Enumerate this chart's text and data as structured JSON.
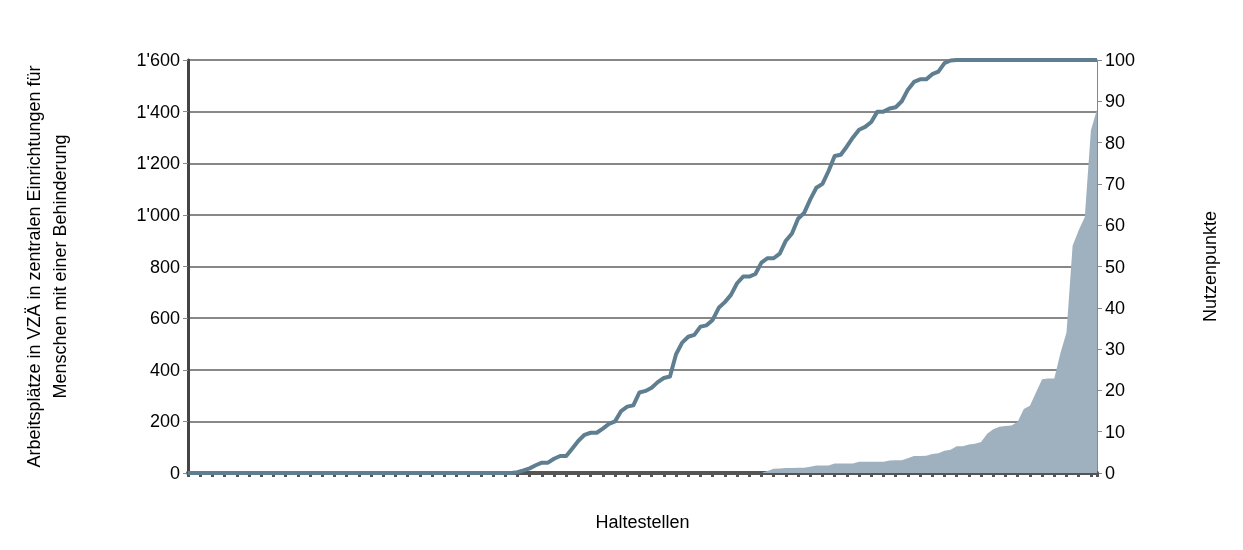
{
  "chart_data": {
    "type": "line",
    "xlabel": "Haltestellen",
    "ylabel": "Arbeitsplätze in VZÄ in zentralen Einrichtungen für\nMenschen mit einer Behinderung",
    "y2label": "Nutzenpunkte",
    "categories": [
      null,
      null,
      null,
      null,
      null,
      null,
      null,
      null,
      null,
      null,
      null,
      null,
      null,
      null,
      null,
      null,
      null,
      null,
      null,
      null,
      null,
      null,
      null,
      null,
      null,
      null,
      null,
      null,
      null,
      null,
      null,
      null,
      null,
      null,
      null,
      null,
      null,
      null,
      null,
      null,
      null,
      null,
      null,
      null,
      null,
      null,
      null,
      null,
      null,
      null,
      null,
      null,
      null,
      null,
      null,
      null,
      null,
      null,
      null,
      null,
      null,
      null,
      null,
      null,
      null,
      null,
      null,
      null,
      null,
      null,
      null,
      null,
      null,
      null,
      null,
      null,
      null,
      null,
      null,
      null,
      null,
      null,
      null,
      null,
      null,
      null,
      null,
      null,
      null,
      null,
      null,
      null,
      null,
      null,
      null,
      null,
      null,
      null,
      null,
      null,
      null,
      null,
      null,
      null,
      null,
      null,
      null,
      null,
      null,
      null,
      null,
      null,
      null,
      null,
      null,
      null,
      null,
      null,
      null,
      null,
      null,
      null,
      null,
      null,
      null,
      null,
      null,
      null,
      null,
      null,
      null,
      null,
      null,
      null,
      null,
      null,
      null,
      null,
      null,
      null,
      null,
      null,
      null,
      null,
      null,
      null,
      null,
      null,
      null,
      null
    ],
    "series": [
      {
        "type": "area",
        "axis": "y2",
        "color": "#9fb1bf",
        "values": [
          0,
          0,
          0,
          0,
          0,
          0,
          0,
          0,
          0,
          0,
          0,
          0,
          0,
          0,
          0,
          0,
          0,
          0,
          0,
          0,
          0,
          0,
          0,
          0,
          0,
          0,
          0,
          0,
          0,
          0,
          0,
          0,
          0,
          0,
          0,
          0,
          0,
          0,
          0,
          0,
          0,
          0,
          0,
          0,
          0,
          0,
          0,
          0,
          0,
          0,
          0,
          0,
          0,
          0,
          0,
          0,
          0,
          0,
          0,
          0,
          0,
          0,
          0,
          0,
          0,
          0,
          0,
          0,
          0,
          0,
          0,
          0,
          0,
          0,
          0,
          0,
          0,
          0,
          0,
          0,
          0,
          0,
          0,
          0,
          0,
          0,
          0,
          0,
          0,
          0,
          0,
          0,
          0,
          0,
          0,
          0.5,
          1,
          1.1,
          1.2,
          1.2,
          1.3,
          1.3,
          1.5,
          1.8,
          1.8,
          1.8,
          2.3,
          2.3,
          2.3,
          2.3,
          2.7,
          2.7,
          2.7,
          2.7,
          2.7,
          3.0,
          3.1,
          3.1,
          3.6,
          4.1,
          4.1,
          4.2,
          4.6,
          4.8,
          5.4,
          5.6,
          6.5,
          6.5,
          6.9,
          7.1,
          7.5,
          9.5,
          10.6,
          11.2,
          11.4,
          11.5,
          12.4,
          15.5,
          16.3,
          19.5,
          22.7,
          22.9,
          22.9,
          29,
          34,
          55,
          58.8,
          62,
          83,
          88
        ]
      },
      {
        "color": "#5f7f91",
        "values": [
          0,
          0,
          0,
          0,
          0,
          0,
          0,
          0,
          0,
          0,
          0,
          0,
          0,
          0,
          0,
          0,
          0,
          0,
          0,
          0,
          0,
          0,
          0,
          0,
          0,
          0,
          0,
          0,
          0,
          0,
          0,
          0,
          0,
          0,
          0,
          0,
          0,
          0,
          0,
          0,
          0,
          0,
          0,
          0,
          0,
          0,
          0,
          0,
          0,
          0,
          0,
          0,
          0,
          0,
          3,
          10,
          18,
          30,
          40,
          40,
          55,
          66,
          66,
          95,
          125,
          148,
          156,
          156,
          172,
          190,
          200,
          240,
          257,
          262,
          312,
          318,
          330,
          352,
          368,
          374,
          460,
          505,
          528,
          535,
          567,
          572,
          593,
          640,
          662,
          690,
          735,
          761,
          761,
          771,
          815,
          832,
          832,
          850,
          900,
          928,
          985,
          1008,
          1060,
          1105,
          1120,
          1170,
          1228,
          1233,
          1265,
          1300,
          1330,
          1341,
          1360,
          1400,
          1400,
          1412,
          1417,
          1440,
          1485,
          1515,
          1525,
          1525,
          1545,
          1555,
          1588,
          1598,
          1600,
          1600,
          1600,
          1600,
          1600,
          1600,
          1600,
          1600,
          1600,
          1600,
          1600,
          1600,
          1600,
          1600,
          1600,
          1600,
          1600,
          1600,
          1600,
          1600,
          1600,
          1600,
          1600,
          1600
        ]
      }
    ],
    "ylim": [
      0,
      1600
    ],
    "yticks": [
      0,
      200,
      400,
      600,
      800,
      {
        "value": 1000,
        "label": "1'000"
      },
      {
        "value": 1200,
        "label": "1'200"
      },
      {
        "value": 1400,
        "label": "1'400"
      },
      {
        "value": 1600,
        "label": "1'600"
      }
    ],
    "y2lim": [
      0,
      100
    ],
    "y2ticks": [
      0,
      10,
      20,
      30,
      40,
      50,
      60,
      70,
      80,
      90,
      100
    ],
    "grid": "y",
    "marker": "none",
    "line_style": "solid"
  }
}
